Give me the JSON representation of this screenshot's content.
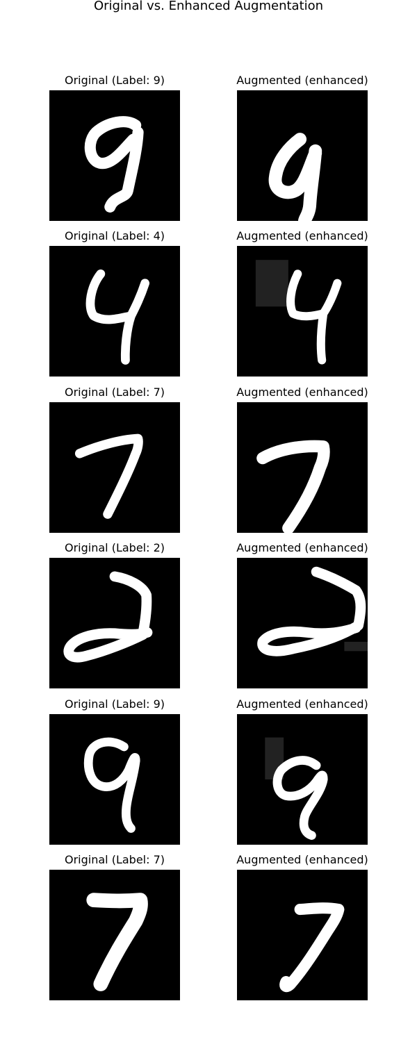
{
  "figure": {
    "title": "Original vs. Enhanced Augmentation"
  },
  "rows": [
    {
      "original_title": "Original (Label: 9)",
      "augmented_title": "Augmented (enhanced)"
    },
    {
      "original_title": "Original (Label: 4)",
      "augmented_title": "Augmented (enhanced)"
    },
    {
      "original_title": "Original (Label: 7)",
      "augmented_title": "Augmented (enhanced)"
    },
    {
      "original_title": "Original (Label: 2)",
      "augmented_title": "Augmented (enhanced)"
    },
    {
      "original_title": "Original (Label: 9)",
      "augmented_title": "Augmented (enhanced)"
    },
    {
      "original_title": "Original (Label: 7)",
      "augmented_title": "Augmented (enhanced)"
    }
  ],
  "colors": {
    "image_background": "#000000",
    "digit_stroke": "#ffffff",
    "erase_patch": "#222222"
  }
}
